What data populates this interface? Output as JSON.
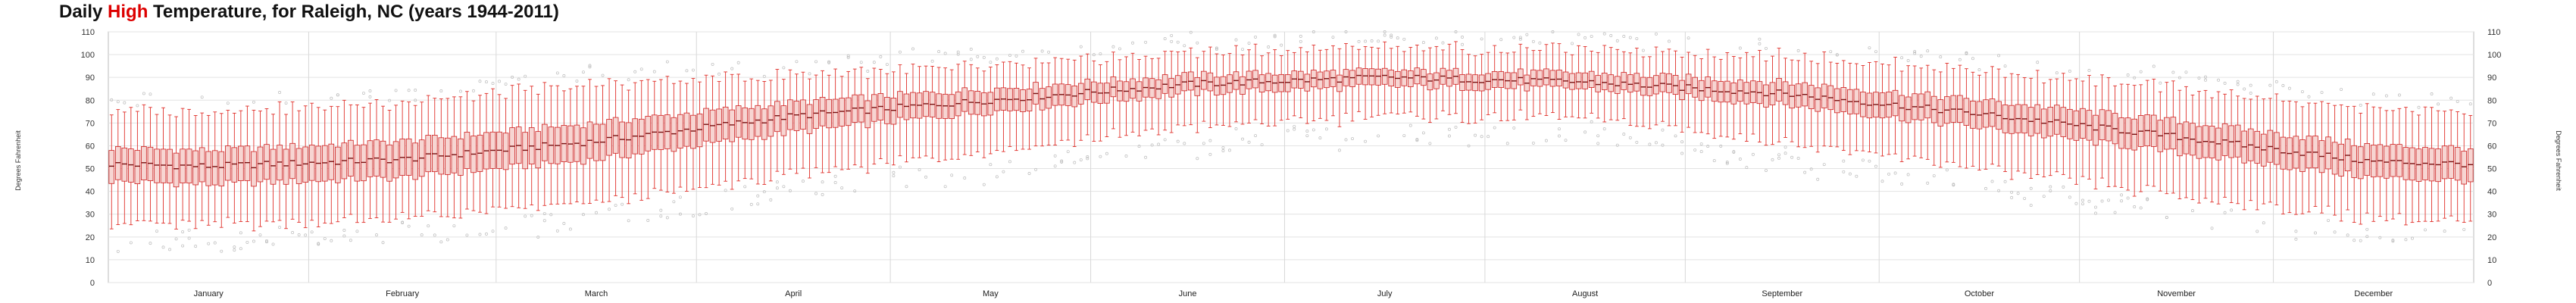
{
  "chart_data": {
    "type": "box",
    "title": {
      "prefix": "Daily ",
      "highlight": "High",
      "suffix": " Temperature, for Raleigh, NC (years 1944-2011)"
    },
    "ylabel_left": "Degrees Fahrenheit",
    "ylabel_right": "Degrees Fahrenheit",
    "ylim": [
      0,
      110
    ],
    "yticks": [
      0,
      10,
      20,
      30,
      40,
      50,
      60,
      70,
      80,
      90,
      100,
      110
    ],
    "grid": true,
    "months": [
      {
        "name": "January",
        "days": 31
      },
      {
        "name": "February",
        "days": 29
      },
      {
        "name": "March",
        "days": 31
      },
      {
        "name": "April",
        "days": 30
      },
      {
        "name": "May",
        "days": 31
      },
      {
        "name": "June",
        "days": 30
      },
      {
        "name": "July",
        "days": 31
      },
      {
        "name": "August",
        "days": 31
      },
      {
        "name": "September",
        "days": 30
      },
      {
        "name": "October",
        "days": 31
      },
      {
        "name": "November",
        "days": 30
      },
      {
        "name": "December",
        "days": 31
      }
    ],
    "monthly_summary": [
      {
        "month": "January",
        "min": 25,
        "q1": 43,
        "median": 51,
        "q3": 58,
        "max": 75
      },
      {
        "month": "February",
        "min": 28,
        "q1": 46,
        "median": 54,
        "q3": 62,
        "max": 79
      },
      {
        "month": "March",
        "min": 35,
        "q1": 54,
        "median": 62,
        "q3": 70,
        "max": 87
      },
      {
        "month": "April",
        "min": 47,
        "q1": 66,
        "median": 73,
        "q3": 79,
        "max": 91
      },
      {
        "month": "May",
        "min": 58,
        "q1": 75,
        "median": 80,
        "q3": 85,
        "max": 95
      },
      {
        "month": "June",
        "min": 68,
        "q1": 83,
        "median": 87,
        "q3": 91,
        "max": 101
      },
      {
        "month": "July",
        "min": 73,
        "q1": 86,
        "median": 90,
        "q3": 93,
        "max": 103
      },
      {
        "month": "August",
        "min": 72,
        "q1": 85,
        "median": 88,
        "q3": 92,
        "max": 102
      },
      {
        "month": "September",
        "min": 62,
        "q1": 78,
        "median": 83,
        "q3": 88,
        "max": 100
      },
      {
        "month": "October",
        "min": 50,
        "q1": 68,
        "median": 74,
        "q3": 80,
        "max": 93
      },
      {
        "month": "November",
        "min": 38,
        "q1": 57,
        "median": 64,
        "q3": 71,
        "max": 85
      },
      {
        "month": "December",
        "min": 28,
        "q1": 46,
        "median": 53,
        "q3": 60,
        "max": 76
      }
    ]
  }
}
